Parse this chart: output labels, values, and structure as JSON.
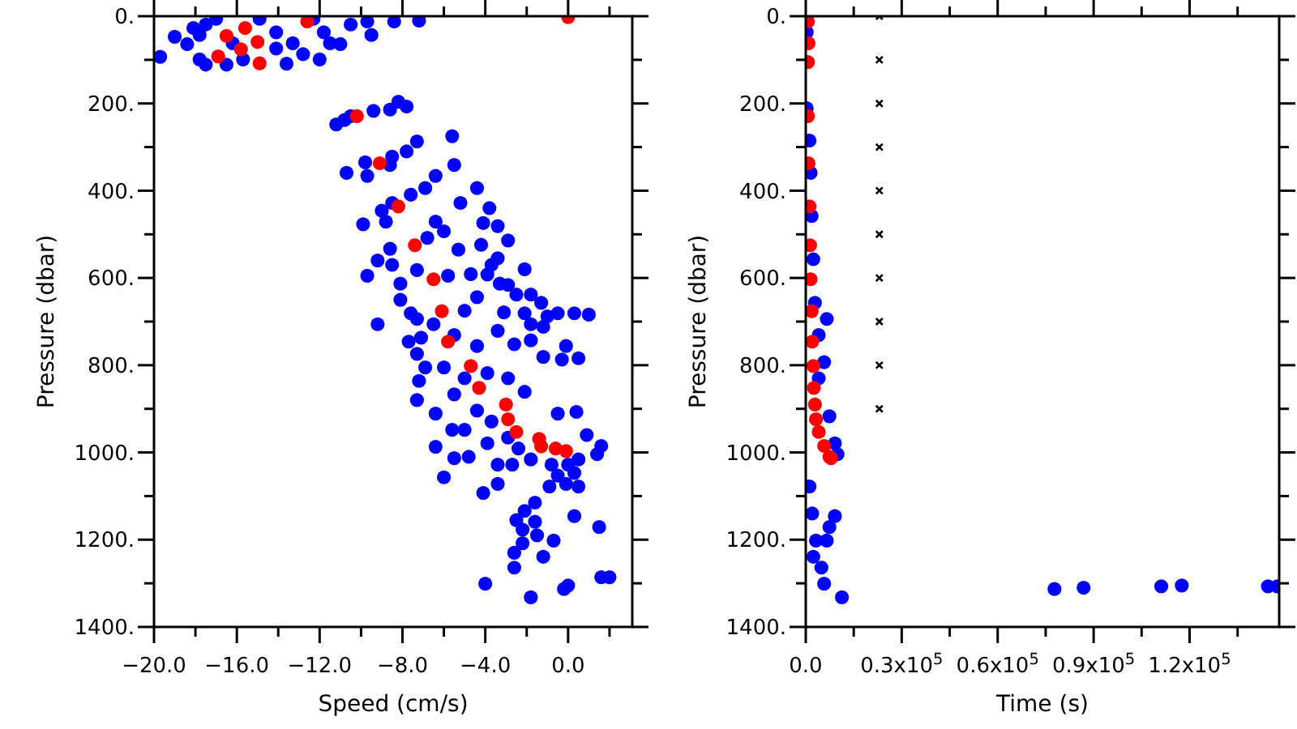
{
  "chart_data": [
    {
      "type": "scatter",
      "xlabel": "Speed (cm/s)",
      "ylabel": "Pressure (dbar)",
      "marker": "circle",
      "xlim": [
        -20,
        3.1
      ],
      "ylim": [
        1400,
        0
      ],
      "xticks": [
        {
          "value": -20,
          "label": "−20.0"
        },
        {
          "value": -18,
          "label": null
        },
        {
          "value": -16,
          "label": "−16.0"
        },
        {
          "value": -14,
          "label": null
        },
        {
          "value": -12,
          "label": "−12.0"
        },
        {
          "value": -10,
          "label": null
        },
        {
          "value": -8,
          "label": "−8.0"
        },
        {
          "value": -6,
          "label": null
        },
        {
          "value": -4,
          "label": "−4.0"
        },
        {
          "value": -2,
          "label": null
        },
        {
          "value": 0,
          "label": "0.0"
        },
        {
          "value": 2,
          "label": null
        }
      ],
      "yticks": [
        {
          "value": 0,
          "label": "0."
        },
        {
          "value": 100,
          "label": null
        },
        {
          "value": 200,
          "label": "200."
        },
        {
          "value": 300,
          "label": null
        },
        {
          "value": 400,
          "label": "400."
        },
        {
          "value": 500,
          "label": null
        },
        {
          "value": 600,
          "label": "600."
        },
        {
          "value": 700,
          "label": null
        },
        {
          "value": 800,
          "label": "800."
        },
        {
          "value": 900,
          "label": null
        },
        {
          "value": 1000,
          "label": "1000."
        },
        {
          "value": 1100,
          "label": null
        },
        {
          "value": 1200,
          "label": "1200."
        },
        {
          "value": 1300,
          "label": null
        },
        {
          "value": 1400,
          "label": "1400."
        }
      ],
      "series": [
        {
          "color": "#0000ff",
          "x": [
            -19.7,
            -19.0,
            -18.1,
            -18.4,
            -17.8,
            -17.5,
            -16.5,
            -13.6,
            -12.0,
            -11.5,
            -11.0,
            -9.5,
            -10.5,
            -8.4,
            -7.2,
            -12.3,
            -14.9,
            -17.5,
            -17.0,
            -14.1,
            -12.8,
            -15.7,
            -13.3,
            -14.1,
            -16.2,
            -11.8,
            -9.7,
            -17.8,
            -11.2,
            -10.5,
            -9.4,
            -8.6,
            -8.2,
            -7.8,
            -10.8,
            -9.8,
            -9.7,
            -10.7,
            -8.5,
            -7.8,
            -7.3,
            -8.6,
            -6.4,
            -5.6,
            -5.5,
            -9.0,
            -8.8,
            -7.6,
            -6.9,
            -9.9,
            -8.5,
            -4.4,
            -5.2,
            -3.8,
            -4.1,
            -3.4,
            -2.9,
            -8.6,
            -6.4,
            -6.0,
            -6.8,
            -9.2,
            -8.5,
            -4.2,
            -5.3,
            -3.4,
            -3.7,
            -3.9,
            -2.1,
            -8.1,
            -7.3,
            -5.8,
            -9.7,
            -4.7,
            -4.4,
            -3.3,
            -2.9,
            -2.5,
            -1.8,
            -1.3,
            -0.5,
            0.3,
            1.0,
            -1.0,
            -8.1,
            -9.2,
            -7.6,
            -7.3,
            -5.0,
            -3.1,
            -3.4,
            -2.1,
            -1.8,
            -1.2,
            -1.8,
            -1.2,
            -0.1,
            -0.3,
            0.5,
            -2.6,
            -7.7,
            -7.3,
            -7.1,
            -6.9,
            -7.2,
            -7.3,
            -6.5,
            -5.5,
            -4.4,
            -6.0,
            -5.0,
            -3.9,
            -2.9,
            -2.1,
            -5.5,
            -4.4,
            -3.7,
            -2.9,
            -2.4,
            -1.8,
            -0.8,
            0.0,
            0.5,
            0.9,
            1.6,
            1.4,
            0.3,
            -0.5,
            -0.9,
            -0.1,
            0.5,
            -0.5,
            0.4,
            -6.4,
            -5.6,
            -6.4,
            -5.5,
            -4.8,
            -6.0,
            -4.1,
            -3.4,
            -3.4,
            -2.7,
            -5.0,
            -3.9,
            -1.6,
            -2.1,
            -2.5,
            -1.6,
            -2.2,
            -1.5,
            -2.2,
            -2.6,
            -2.6,
            -0.7,
            -1.2,
            0.3,
            1.5,
            -4.0,
            -1.8,
            -0.2,
            0.0,
            1.6,
            2.0
          ],
          "values": [
            93,
            47,
            27,
            64,
            99,
            111,
            111,
            109,
            99,
            62,
            64,
            43,
            19,
            12,
            10,
            6,
            6,
            19,
            6,
            37,
            87,
            99,
            62,
            74,
            62,
            37,
            12,
            43,
            248,
            229,
            217,
            214,
            196,
            207,
            238,
            335,
            366,
            359,
            322,
            310,
            287,
            341,
            366,
            275,
            341,
            446,
            471,
            409,
            394,
            477,
            428,
            394,
            428,
            440,
            474,
            481,
            514,
            533,
            471,
            493,
            508,
            560,
            570,
            524,
            535,
            555,
            570,
            592,
            580,
            613,
            582,
            595,
            595,
            591,
            644,
            613,
            616,
            638,
            638,
            657,
            681,
            681,
            684,
            688,
            650,
            706,
            681,
            694,
            675,
            679,
            721,
            681,
            706,
            712,
            743,
            781,
            756,
            787,
            784,
            752,
            746,
            774,
            737,
            805,
            836,
            880,
            706,
            731,
            756,
            805,
            830,
            818,
            830,
            861,
            867,
            904,
            929,
            966,
            991,
            1016,
            1028,
            1028,
            1016,
            960,
            985,
            1004,
            1047,
            1053,
            1078,
            1072,
            1078,
            911,
            907,
            911,
            948,
            987,
            1013,
            1010,
            1057,
            1093,
            1072,
            1028,
            1028,
            948,
            979,
            1115,
            1134,
            1155,
            1159,
            1177,
            1190,
            1208,
            1230,
            1264,
            1202,
            1239,
            1146,
            1171,
            1301,
            1332,
            1313,
            1305,
            1286,
            1286
          ]
        },
        {
          "color": "#ff0000",
          "x": [
            -16.5,
            -15.6,
            -15.0,
            -15.8,
            -16.9,
            -14.9,
            -12.6,
            0.0,
            -10.2,
            -9.1,
            -8.2,
            -7.4,
            -6.5,
            -6.1,
            -5.8,
            -4.7,
            -4.3,
            -3.0,
            -2.9,
            -2.5,
            -1.4,
            -1.3,
            -0.6,
            -0.1
          ],
          "values": [
            45,
            27,
            59,
            76,
            92,
            108,
            12,
            2,
            229,
            337,
            436,
            525,
            603,
            676,
            746,
            802,
            852,
            890,
            924,
            953,
            969,
            986,
            991,
            997
          ]
        }
      ]
    },
    {
      "type": "scatter",
      "xlabel": "Time (s)",
      "ylabel": "Pressure (dbar)",
      "marker": "circle",
      "xlim": [
        0,
        148000
      ],
      "ylim": [
        1400,
        0
      ],
      "xticks": [
        {
          "value": 0,
          "label": "0.0"
        },
        {
          "value": 15000,
          "label": null
        },
        {
          "value": 30000,
          "label": "0.3x10$^{5}$"
        },
        {
          "value": 45000,
          "label": null
        },
        {
          "value": 60000,
          "label": "0.6x10$^{5}$"
        },
        {
          "value": 75000,
          "label": null
        },
        {
          "value": 90000,
          "label": "0.9x10$^{5}$"
        },
        {
          "value": 105000,
          "label": null
        },
        {
          "value": 120000,
          "label": "1.2x10$^{5}$"
        },
        {
          "value": 135000,
          "label": null
        }
      ],
      "yticks": [
        {
          "value": 0,
          "label": "0."
        },
        {
          "value": 100,
          "label": null
        },
        {
          "value": 200,
          "label": "200."
        },
        {
          "value": 300,
          "label": null
        },
        {
          "value": 400,
          "label": "400."
        },
        {
          "value": 500,
          "label": null
        },
        {
          "value": 600,
          "label": "600."
        },
        {
          "value": 700,
          "label": null
        },
        {
          "value": 800,
          "label": "800."
        },
        {
          "value": 900,
          "label": null
        },
        {
          "value": 1000,
          "label": "1000."
        },
        {
          "value": 1100,
          "label": null
        },
        {
          "value": 1200,
          "label": "1200."
        },
        {
          "value": 1300,
          "label": null
        },
        {
          "value": 1400,
          "label": "1400."
        }
      ],
      "series": [
        {
          "color": "#0000ff",
          "x": [
            300,
            300,
            1180,
            1520,
            1850,
            2360,
            2870,
            4050,
            6580,
            5740,
            4050,
            1180,
            2020,
            3200,
            4890,
            5740,
            6580,
            7400,
            9100,
            9100,
            9940,
            7400,
            2360,
            11300,
            77760,
            86860,
            111140,
            117550,
            144500,
            147400
          ],
          "values": [
            37,
            211,
            285,
            359,
            458,
            557,
            657,
            731,
            694,
            793,
            830,
            1078,
            1140,
            1202,
            1264,
            1301,
            1202,
            1171,
            1146,
            979,
            1004,
            917,
            1239,
            1332,
            1313,
            1310,
            1307,
            1305,
            1307,
            1307
          ]
        },
        {
          "color": "#ff0000",
          "x": [
            680,
            850,
            680,
            680,
            850,
            1180,
            1350,
            1520,
            1850,
            2020,
            2360,
            2530,
            2870,
            3200,
            4050,
            5740,
            7400,
            7900
          ],
          "values": [
            12,
            62,
            105,
            229,
            337,
            436,
            525,
            603,
            676,
            746,
            802,
            852,
            890,
            924,
            953,
            985,
            1010,
            1013
          ]
        },
        {
          "color": "#000000",
          "marker": "cross",
          "x": [
            23000,
            23000,
            23000,
            23000,
            23000,
            23000,
            23000,
            23000,
            23000,
            23000
          ],
          "values": [
            0,
            100,
            200,
            300,
            400,
            500,
            600,
            700,
            800,
            900
          ]
        }
      ]
    }
  ]
}
